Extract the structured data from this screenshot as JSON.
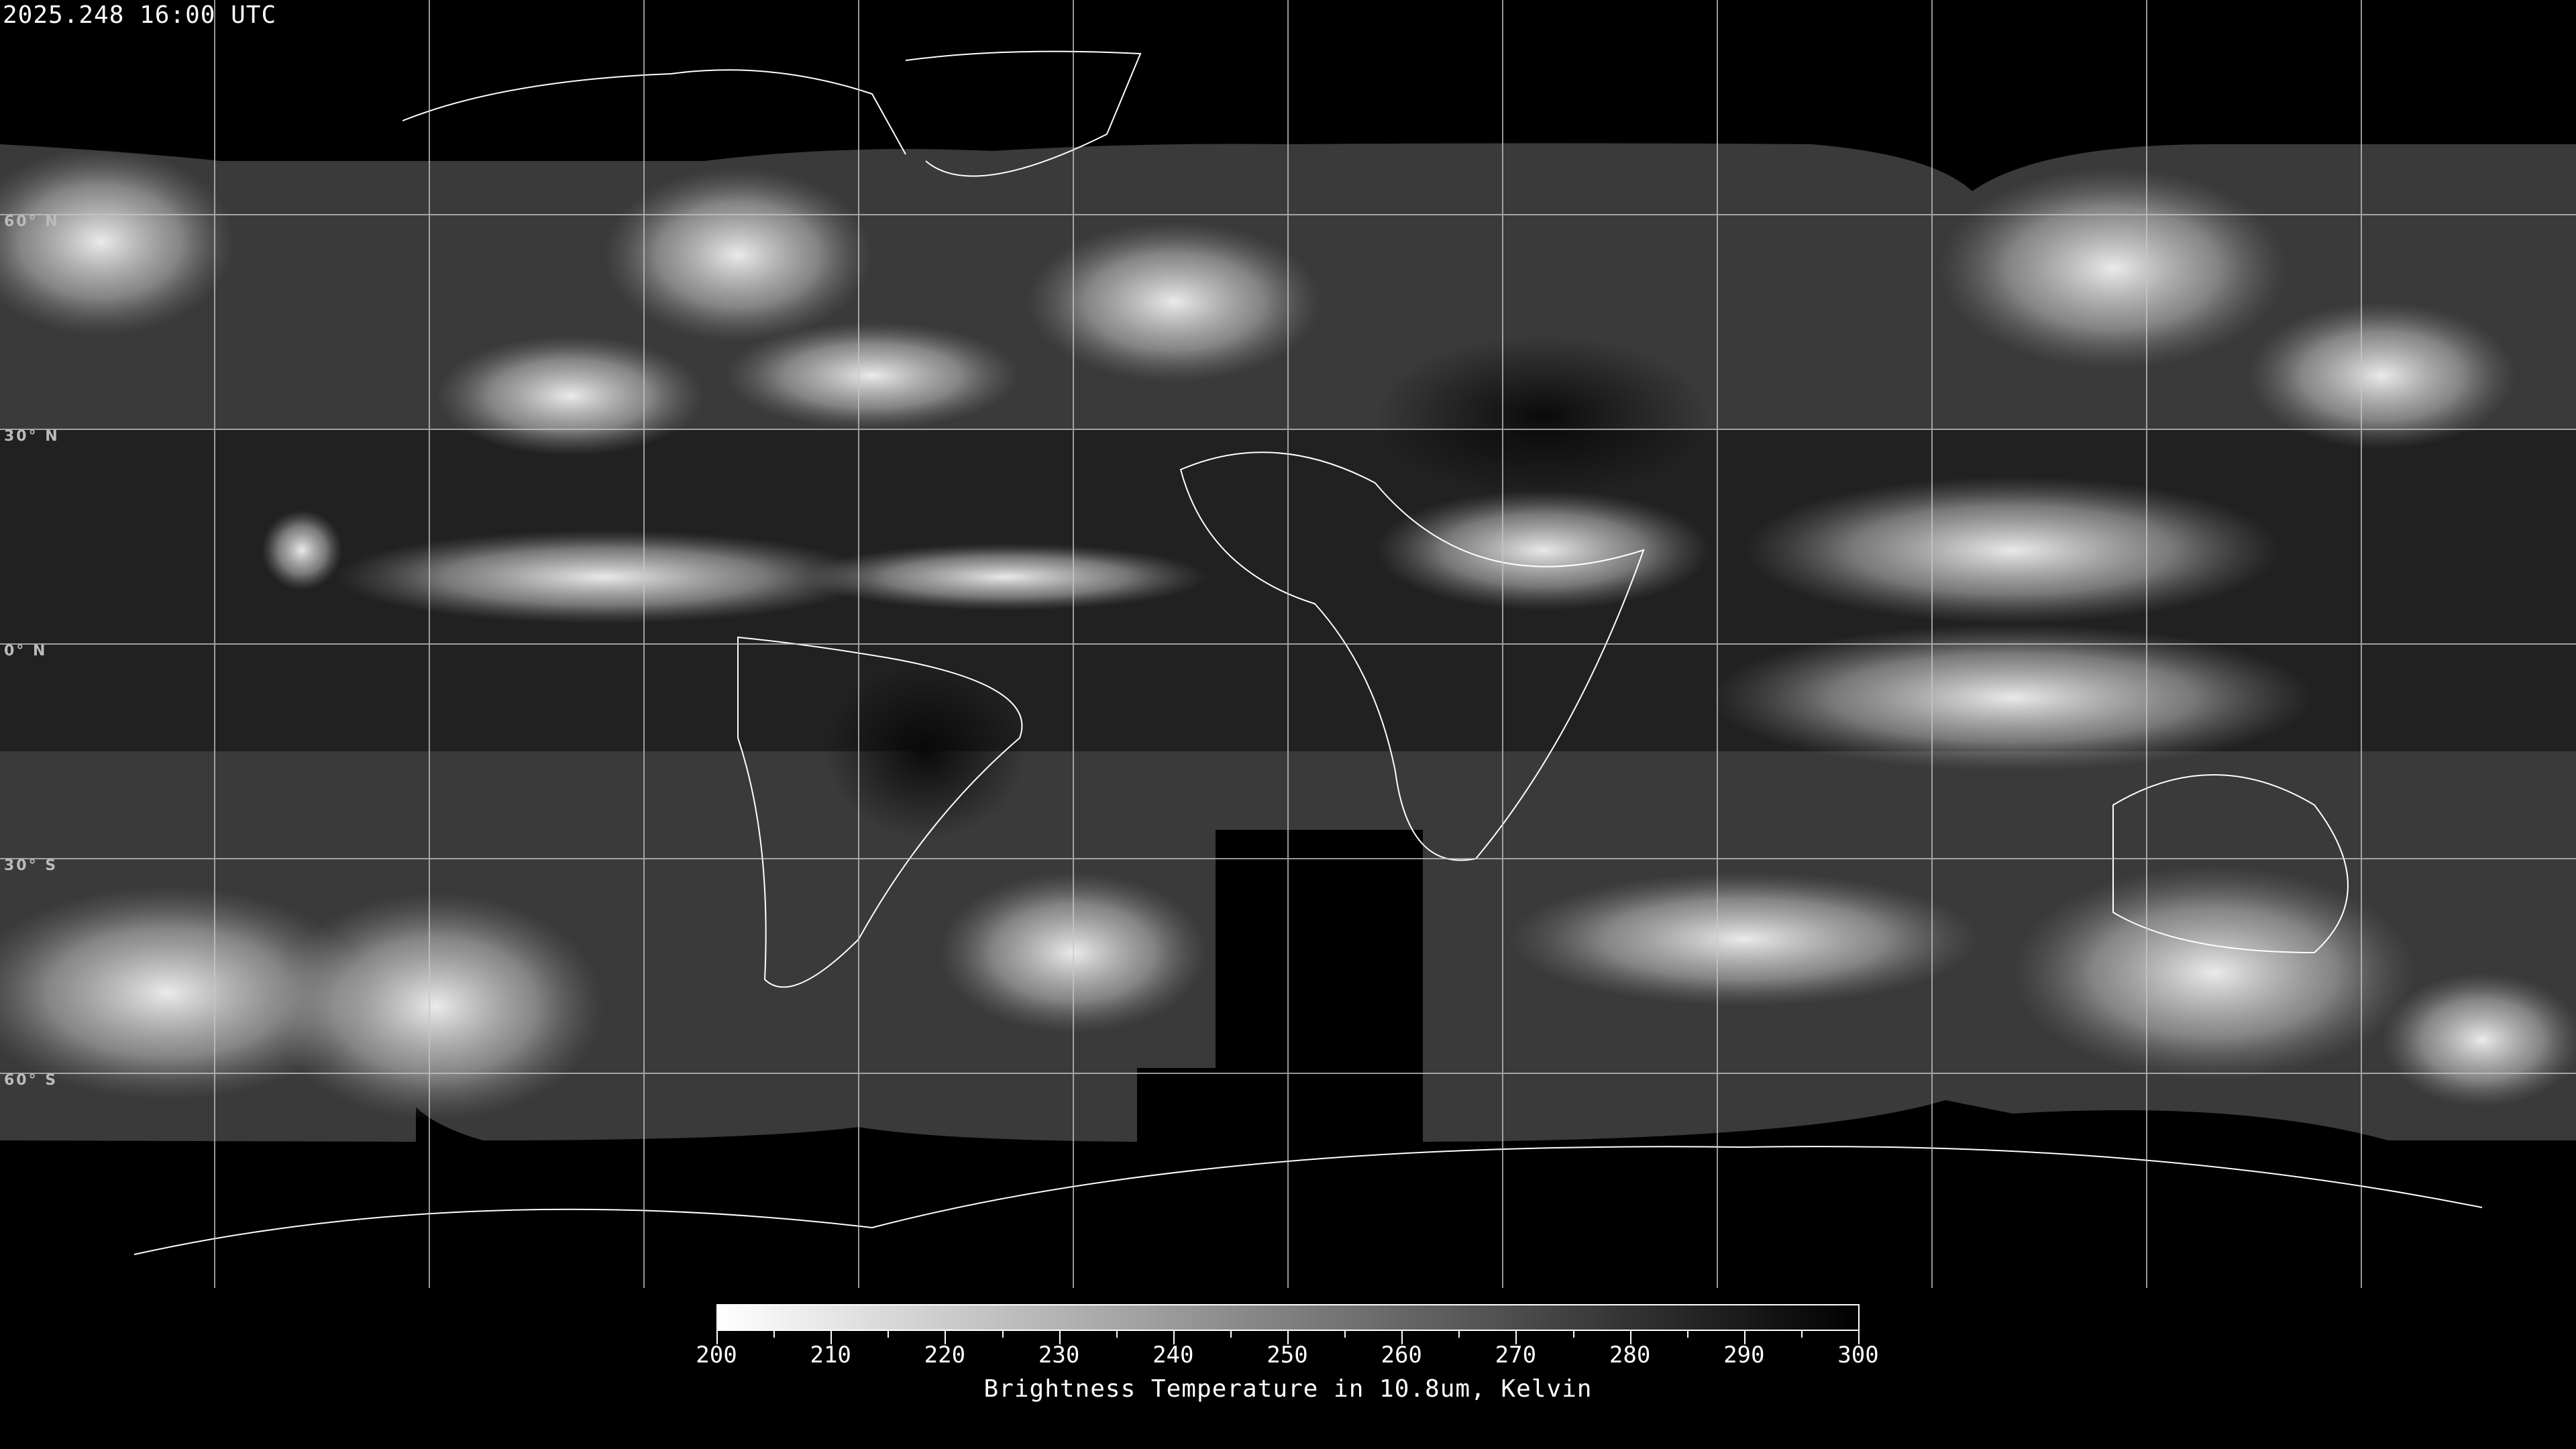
{
  "header": {
    "timestamp": "2025.248 16:00 UTC"
  },
  "map": {
    "projection": "equirectangular",
    "grid_spacing_deg": 30,
    "lat_labels": [
      "60° N",
      "30° N",
      "0° N",
      "30° S",
      "60° S"
    ],
    "colors": {
      "background": "#000000",
      "grid": "#c8c8c8",
      "coastline": "#ffffff"
    }
  },
  "colorbar": {
    "min": 200,
    "max": 300,
    "tick_labels": [
      "200",
      "210",
      "220",
      "230",
      "240",
      "250",
      "260",
      "270",
      "280",
      "290",
      "300"
    ],
    "title": "Brightness Temperature in 10.8um, Kelvin",
    "colormap": "grayscale-inverted",
    "color_min": "#ffffff",
    "color_max": "#000000"
  }
}
